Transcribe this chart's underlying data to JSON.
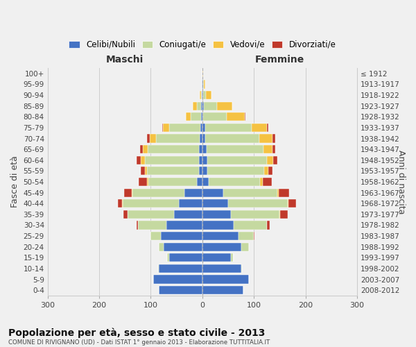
{
  "age_groups": [
    "0-4",
    "5-9",
    "10-14",
    "15-19",
    "20-24",
    "25-29",
    "30-34",
    "35-39",
    "40-44",
    "45-49",
    "50-54",
    "55-59",
    "60-64",
    "65-69",
    "70-74",
    "75-79",
    "80-84",
    "85-89",
    "90-94",
    "95-99",
    "100+"
  ],
  "birth_years": [
    "2008-2012",
    "2003-2007",
    "1998-2002",
    "1993-1997",
    "1988-1992",
    "1983-1987",
    "1978-1982",
    "1973-1977",
    "1968-1972",
    "1963-1967",
    "1958-1962",
    "1953-1957",
    "1948-1952",
    "1943-1947",
    "1938-1942",
    "1933-1937",
    "1928-1932",
    "1923-1927",
    "1918-1922",
    "1913-1917",
    "≤ 1912"
  ],
  "male_celibe": [
    85,
    95,
    85,
    65,
    75,
    80,
    70,
    55,
    45,
    35,
    10,
    7,
    7,
    6,
    5,
    4,
    2,
    2,
    1,
    1,
    0
  ],
  "male_coniugato": [
    0,
    0,
    1,
    3,
    10,
    20,
    55,
    90,
    110,
    100,
    95,
    100,
    105,
    100,
    85,
    60,
    20,
    8,
    2,
    0,
    0
  ],
  "male_vedovo": [
    0,
    0,
    0,
    0,
    0,
    0,
    0,
    0,
    1,
    2,
    3,
    5,
    7,
    10,
    12,
    12,
    10,
    8,
    2,
    0,
    0
  ],
  "male_divorziato": [
    0,
    0,
    0,
    0,
    0,
    0,
    3,
    8,
    8,
    15,
    15,
    8,
    8,
    5,
    5,
    2,
    0,
    0,
    0,
    0,
    0
  ],
  "female_celibe": [
    80,
    90,
    75,
    55,
    75,
    70,
    60,
    55,
    50,
    40,
    12,
    10,
    10,
    8,
    6,
    5,
    2,
    3,
    2,
    1,
    0
  ],
  "female_coniugato": [
    0,
    0,
    2,
    5,
    15,
    30,
    65,
    95,
    115,
    105,
    100,
    110,
    115,
    110,
    105,
    90,
    45,
    25,
    5,
    2,
    0
  ],
  "female_vedovo": [
    0,
    0,
    0,
    0,
    0,
    0,
    0,
    1,
    2,
    3,
    5,
    8,
    12,
    18,
    25,
    30,
    35,
    30,
    10,
    3,
    1
  ],
  "female_divorziato": [
    0,
    0,
    0,
    0,
    0,
    1,
    5,
    15,
    15,
    20,
    18,
    8,
    8,
    5,
    5,
    3,
    2,
    0,
    0,
    0,
    0
  ],
  "color_celibe": "#4472c4",
  "color_coniugato": "#c5d9a0",
  "color_vedovo": "#f5c242",
  "color_divorziato": "#c0392b",
  "title": "Popolazione per età, sesso e stato civile - 2013",
  "subtitle": "COMUNE DI RIVIGNANO (UD) - Dati ISTAT 1° gennaio 2013 - Elaborazione TUTTITALIA.IT",
  "xlabel_left": "Maschi",
  "xlabel_right": "Femmine",
  "ylabel_left": "Fasce di età",
  "ylabel_right": "Anni di nascita",
  "legend_celibe": "Celibi/Nubili",
  "legend_coniugato": "Coniugati/e",
  "legend_vedovo": "Vedovi/e",
  "legend_divorziato": "Divorziati/e",
  "xlim": 300,
  "background_color": "#f0f0f0"
}
